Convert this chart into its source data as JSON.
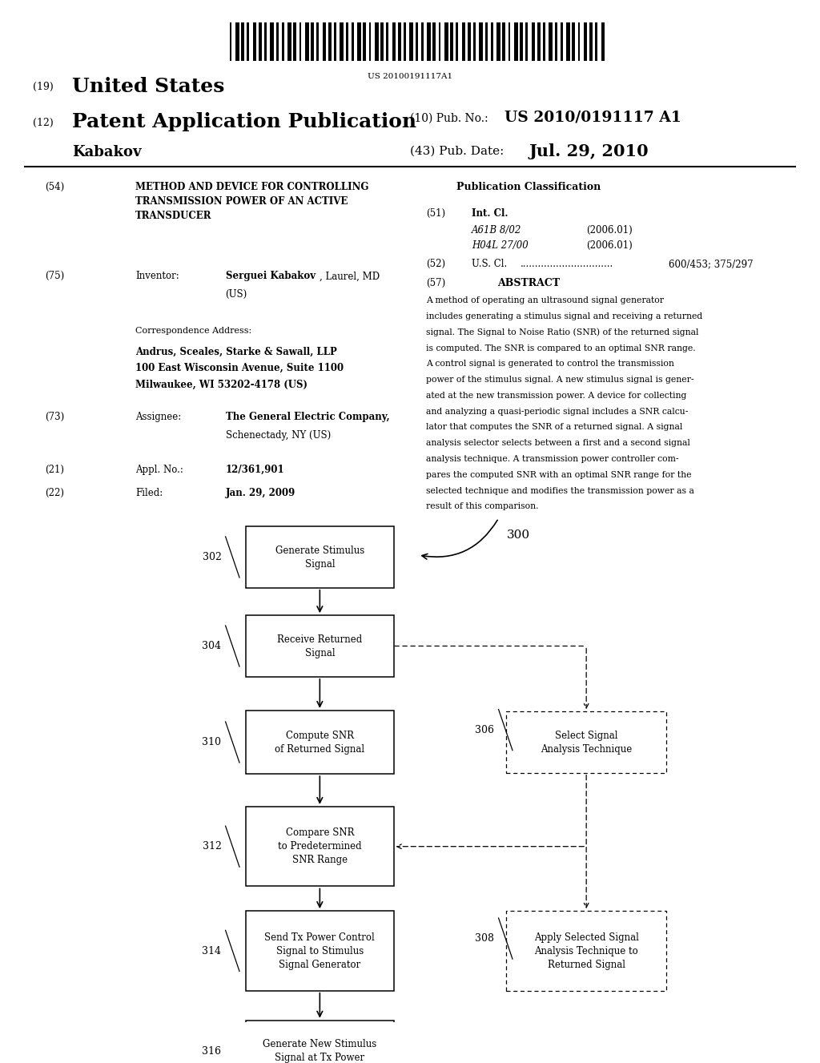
{
  "bg_color": "#ffffff",
  "barcode_text": "US 20100191117A1",
  "header_left_19": "(19)",
  "header_left_19_text": "United States",
  "header_left_12": "(12)",
  "header_left_12_text": "Patent Application Publication",
  "header_right_10": "(10) Pub. No.:",
  "header_right_10_val": "US 2010/0191117 A1",
  "header_kabakov": "Kabakov",
  "header_right_43": "(43) Pub. Date:",
  "header_right_43_val": "Jul. 29, 2010",
  "section54_num": "(54)",
  "section54_title": "METHOD AND DEVICE FOR CONTROLLING\nTRANSMISSION POWER OF AN ACTIVE\nTRANSDUCER",
  "section75_num": "(75)",
  "section75_label": "Inventor:",
  "section75_val": "Serguei Kabakov, Laurel, MD\n(US)",
  "corr_label": "Correspondence Address:",
  "corr_line1": "Andrus, Sceales, Starke & Sawall, LLP",
  "corr_line2": "100 East Wisconsin Avenue, Suite 1100",
  "corr_line3": "Milwaukee, WI 53202-4178 (US)",
  "section73_num": "(73)",
  "section73_label": "Assignee:",
  "section73_val_bold": "The General Electric Company,",
  "section73_val2": "Schenectady, NY (US)",
  "section21_num": "(21)",
  "section21_label": "Appl. No.:",
  "section21_val": "12/361,901",
  "section22_num": "(22)",
  "section22_label": "Filed:",
  "section22_val": "Jan. 29, 2009",
  "pub_class_title": "Publication Classification",
  "section51_num": "(51)",
  "section51_label": "Int. Cl.",
  "section51_a61b": "A61B 8/02",
  "section51_a61b_year": "(2006.01)",
  "section51_h04l": "H04L 27/00",
  "section51_h04l_year": "(2006.01)",
  "section52_num": "(52)",
  "section52_label": "U.S. Cl.",
  "section52_dots": "...............................",
  "section52_val": "600/453; 375/297",
  "section57_num": "(57)",
  "section57_label": "ABSTRACT",
  "abstract_text": "A method of operating an ultrasound signal generator includes generating a stimulus signal and receiving a returned signal. The Signal to Noise Ratio (SNR) of the returned signal is computed. The SNR is compared to an optimal SNR range. A control signal is generated to control the transmission power of the stimulus signal. A new stimulus signal is generated at the new transmission power. A device for collecting and analyzing a quasi-periodic signal includes a SNR calculator that computes the SNR of a returned signal. A signal analysis selector selects between a first and a second signal analysis technique. A transmission power controller compares the computed SNR with an optimal SNR range for the selected technique and modifies the transmission power as a result of this comparison.",
  "diagram_label": "300",
  "box_302_label": "Generate Stimulus\nSignal",
  "box_304_label": "Receive Returned\nSignal",
  "box_310_label": "Compute SNR\nof Returned Signal",
  "box_312_label": "Compare SNR\nto Predetermined\nSNR Range",
  "box_314_label": "Send Tx Power Control\nSignal to Stimulus\nSignal Generator",
  "box_316_label": "Generate New Stimulus\nSignal at Tx Power",
  "box_306_label": "Select Signal\nAnalysis Technique",
  "box_308_label": "Apply Selected Signal\nAnalysis Technique to\nReturned Signal"
}
